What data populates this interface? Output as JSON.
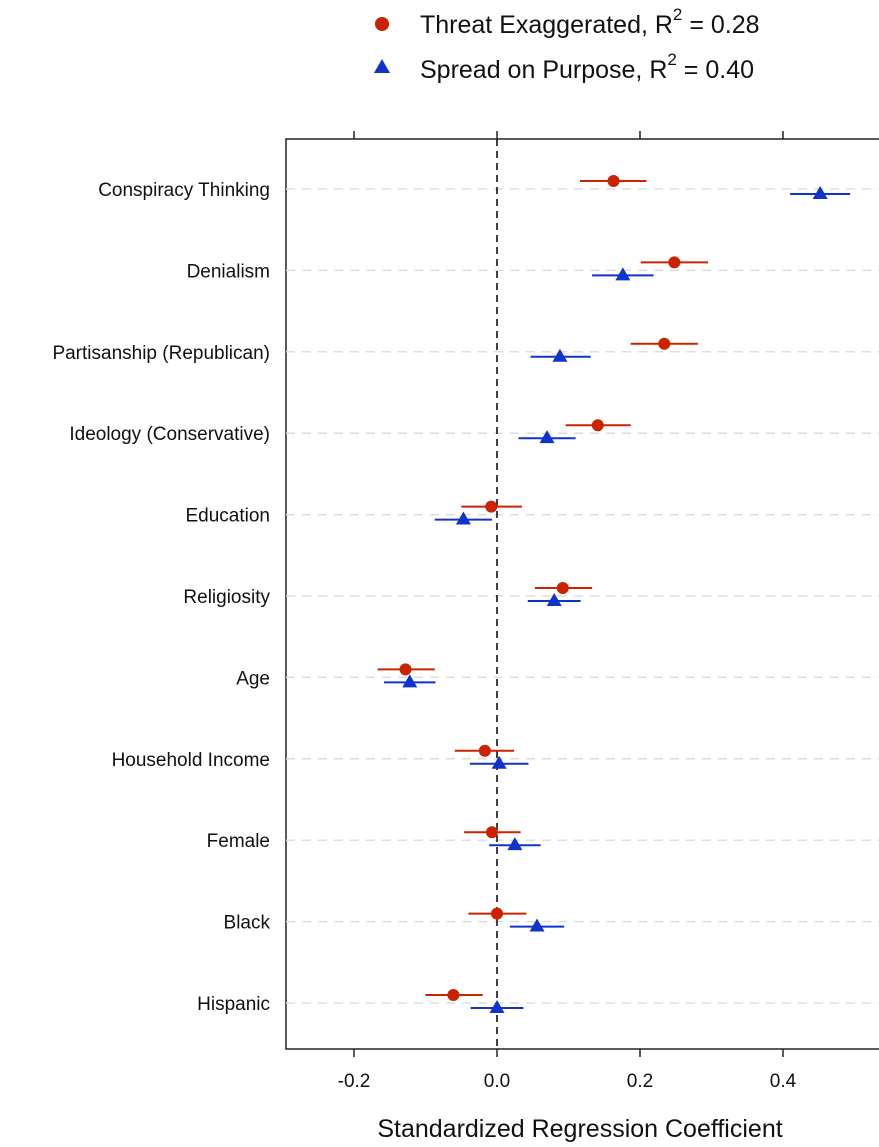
{
  "chart_data": {
    "type": "scatter",
    "subtype": "coefficient-plot",
    "title": "",
    "xlabel": "Standardized Regression Coefficient",
    "ylabel": "",
    "xlim": [
      -0.3,
      0.53
    ],
    "xticks": [
      -0.2,
      0.0,
      0.2,
      0.4
    ],
    "xtick_labels": [
      "-0.2",
      "0.0",
      "0.2",
      "0.4"
    ],
    "reference_line": 0.0,
    "grid": "horizontal dashed",
    "legend_position": "top",
    "categories": [
      "Conspiracy Thinking",
      "Denialism",
      "Partisanship (Republican)",
      "Ideology (Conservative)",
      "Education",
      "Religiosity",
      "Age",
      "Household Income",
      "Female",
      "Black",
      "Hispanic"
    ],
    "series": [
      {
        "name": "Threat Exaggerated",
        "legend_main": "Threat Exaggerated, R",
        "legend_sup": "2",
        "legend_tail": " = 0.28",
        "marker": "circle",
        "color": "#cc2200",
        "values": [
          0.163,
          0.248,
          0.234,
          0.141,
          -0.008,
          0.092,
          -0.128,
          -0.017,
          -0.007,
          0.0,
          -0.061
        ],
        "ci_low": [
          0.116,
          0.201,
          0.187,
          0.096,
          -0.05,
          0.053,
          -0.167,
          -0.059,
          -0.046,
          -0.04,
          -0.1
        ],
        "ci_high": [
          0.209,
          0.295,
          0.281,
          0.187,
          0.035,
          0.133,
          -0.087,
          0.024,
          0.033,
          0.041,
          -0.02
        ]
      },
      {
        "name": "Spread on Purpose",
        "legend_main": "Spread on Purpose, R",
        "legend_sup": "2",
        "legend_tail": " = 0.40",
        "marker": "triangle",
        "color": "#1133cc",
        "values": [
          0.452,
          0.176,
          0.088,
          0.07,
          -0.047,
          0.08,
          -0.122,
          0.003,
          0.025,
          0.056,
          0.0
        ],
        "ci_low": [
          0.41,
          0.133,
          0.047,
          0.03,
          -0.087,
          0.043,
          -0.158,
          -0.038,
          -0.011,
          0.018,
          -0.037
        ],
        "ci_high": [
          0.494,
          0.219,
          0.131,
          0.11,
          -0.007,
          0.117,
          -0.086,
          0.044,
          0.061,
          0.094,
          0.037
        ]
      }
    ]
  }
}
